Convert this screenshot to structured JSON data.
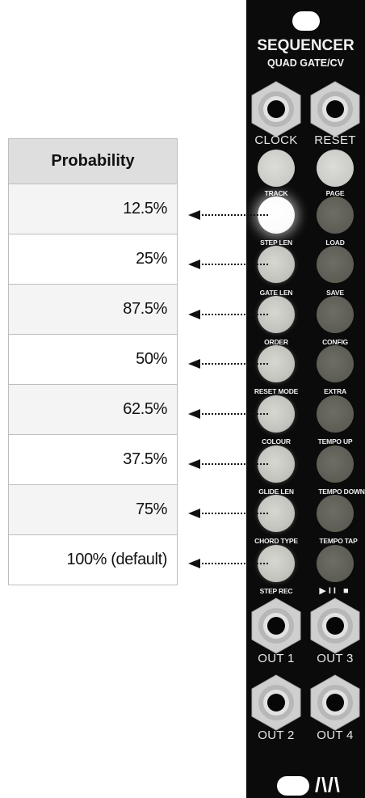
{
  "table": {
    "header": "Probability",
    "rows": [
      "12.5%",
      "25%",
      "87.5%",
      "50%",
      "62.5%",
      "37.5%",
      "75%",
      "100% (default)"
    ]
  },
  "module": {
    "title": "SEQUENCER",
    "subtitle": "QUAD GATE/CV",
    "top_jacks": [
      "CLOCK",
      "RESET"
    ],
    "left_labels": [
      "TRACK",
      "STEP LEN",
      "GATE LEN",
      "ORDER",
      "RESET MODE",
      "COLOUR",
      "GLIDE LEN",
      "CHORD TYPE",
      "STEP REC"
    ],
    "right_labels": [
      "PAGE",
      "LOAD",
      "SAVE",
      "CONFIG",
      "EXTRA",
      "TEMPO UP",
      "TEMPO DOWN",
      "TEMPO TAP"
    ],
    "play_stop": "▶II ■",
    "out_jacks": [
      "OUT 1",
      "OUT 3",
      "OUT 2",
      "OUT 4"
    ],
    "logo": "/\\/\\",
    "lit_button_index": 0
  },
  "colors": {
    "panel": "#0b0b0b",
    "left_button": "#c4c4bf",
    "lit_button": "#ffffff",
    "right_button": "#5c5c54",
    "table_header": "#dedede"
  }
}
